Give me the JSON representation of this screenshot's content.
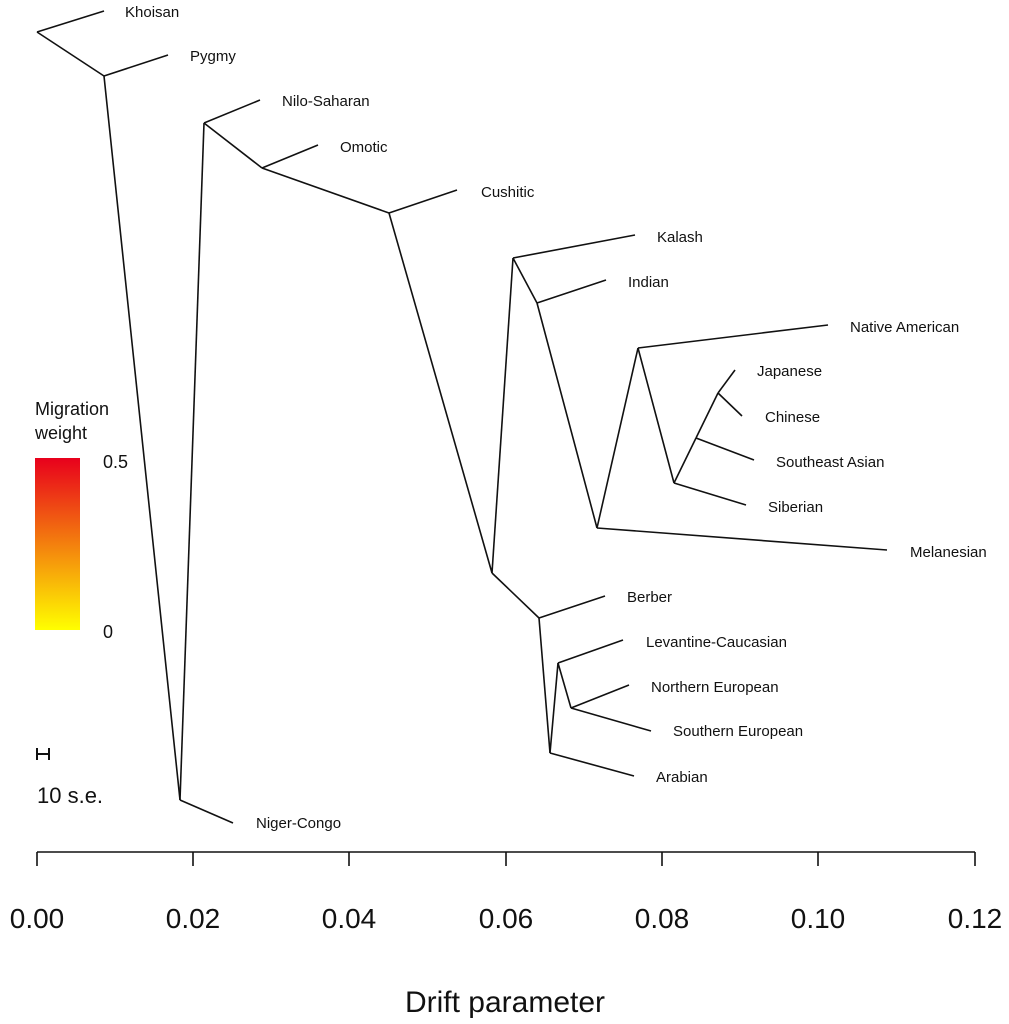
{
  "tree": {
    "leaves": [
      {
        "id": "khoisan",
        "label": "Khoisan"
      },
      {
        "id": "pygmy",
        "label": "Pygmy"
      },
      {
        "id": "nilo_saharan",
        "label": "Nilo-Saharan"
      },
      {
        "id": "omotic",
        "label": "Omotic"
      },
      {
        "id": "cushitic",
        "label": "Cushitic"
      },
      {
        "id": "kalash",
        "label": "Kalash"
      },
      {
        "id": "indian",
        "label": "Indian"
      },
      {
        "id": "native_american",
        "label": "Native American"
      },
      {
        "id": "japanese",
        "label": "Japanese"
      },
      {
        "id": "chinese",
        "label": "Chinese"
      },
      {
        "id": "southeast_asian",
        "label": "Southeast Asian"
      },
      {
        "id": "siberian",
        "label": "Siberian"
      },
      {
        "id": "melanesian",
        "label": "Melanesian"
      },
      {
        "id": "berber",
        "label": "Berber"
      },
      {
        "id": "levantine_caucasian",
        "label": "Levantine-Caucasian"
      },
      {
        "id": "northern_european",
        "label": "Northern European"
      },
      {
        "id": "southern_european",
        "label": "Southern European"
      },
      {
        "id": "arabian",
        "label": "Arabian"
      },
      {
        "id": "niger_congo",
        "label": "Niger-Congo"
      }
    ]
  },
  "axis": {
    "title": "Drift parameter",
    "ticks": [
      "0.00",
      "0.02",
      "0.04",
      "0.06",
      "0.08",
      "0.10",
      "0.12"
    ]
  },
  "legend": {
    "title_line1": "Migration",
    "title_line2": "weight",
    "max_label": "0.5",
    "min_label": "0",
    "color_top": "#e8001c",
    "color_bottom": "#ffff00"
  },
  "scale_bar": {
    "label": "10 s.e."
  }
}
